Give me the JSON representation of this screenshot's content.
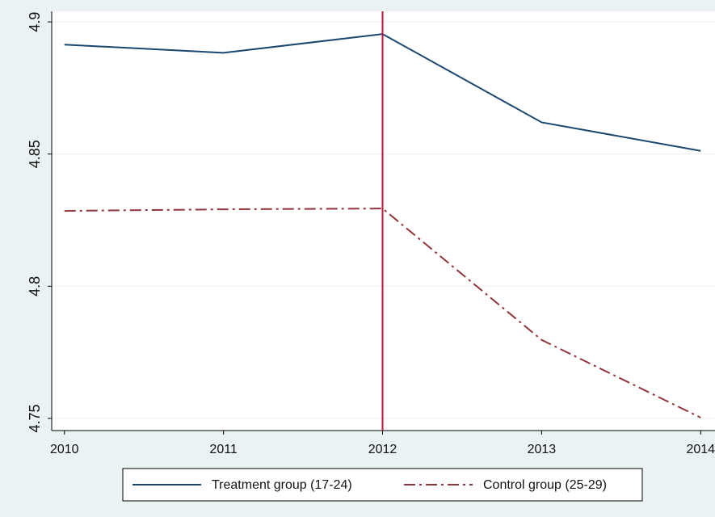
{
  "chart_data": {
    "type": "line",
    "x": [
      2010,
      2011,
      2012,
      2013,
      2014
    ],
    "series": [
      {
        "name": "Treatment group (17-24)",
        "color": "#1a476f",
        "dash": "solid",
        "values": [
          4.8914,
          4.8883,
          4.8954,
          4.862,
          4.8512
        ]
      },
      {
        "name": "Control group (25-29)",
        "color": "#90353b",
        "dash": "dashdot",
        "values": [
          4.8285,
          4.8291,
          4.8294,
          4.7797,
          4.7503
        ]
      }
    ],
    "xlim": [
      2009.92,
      2014.09
    ],
    "xticks": [
      2010,
      2011,
      2012,
      2013,
      2014
    ],
    "ylim": [
      4.7454,
      4.904
    ],
    "yticks": [
      4.75,
      4.8,
      4.85,
      4.9
    ],
    "xline": 2012,
    "xline_color": "#c0143c",
    "grid": true,
    "legend": "bottom"
  }
}
